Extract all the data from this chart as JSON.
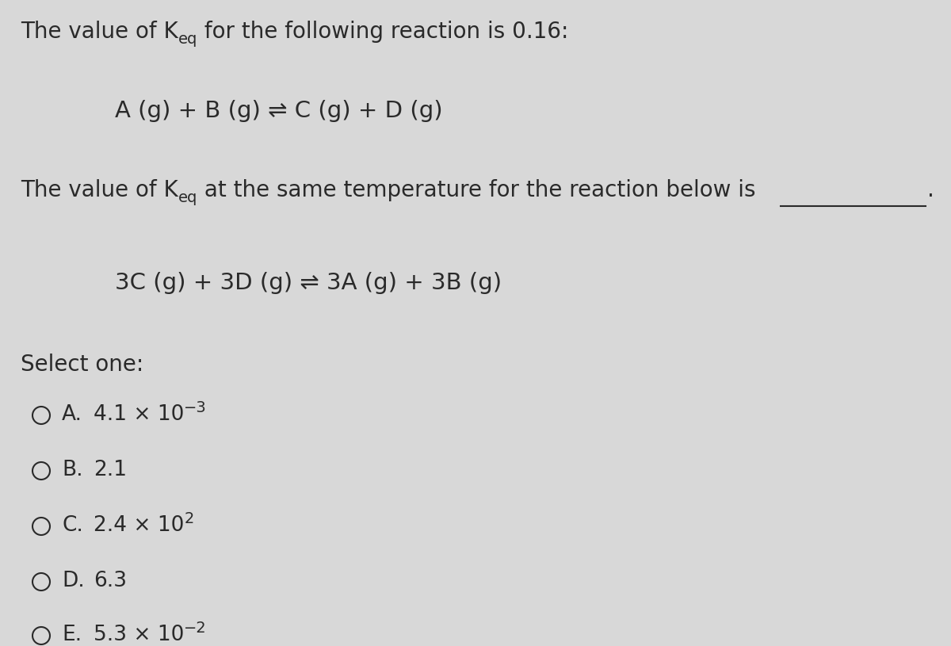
{
  "background_color": "#d8d8d8",
  "text_color": "#2a2a2a",
  "font_size_main": 20,
  "font_size_reaction": 21,
  "font_size_options": 19,
  "font_size_sub": 14,
  "font_size_super": 14,
  "options": [
    {
      "letter": "A.",
      "base": "4.1 × 10",
      "exp": "−3"
    },
    {
      "letter": "B.",
      "base": "2.1",
      "exp": ""
    },
    {
      "letter": "C.",
      "base": "2.4 × 10",
      "exp": "2"
    },
    {
      "letter": "D.",
      "base": "6.3",
      "exp": ""
    },
    {
      "letter": "E.",
      "base": "5.3 × 10",
      "exp": "−2"
    }
  ]
}
